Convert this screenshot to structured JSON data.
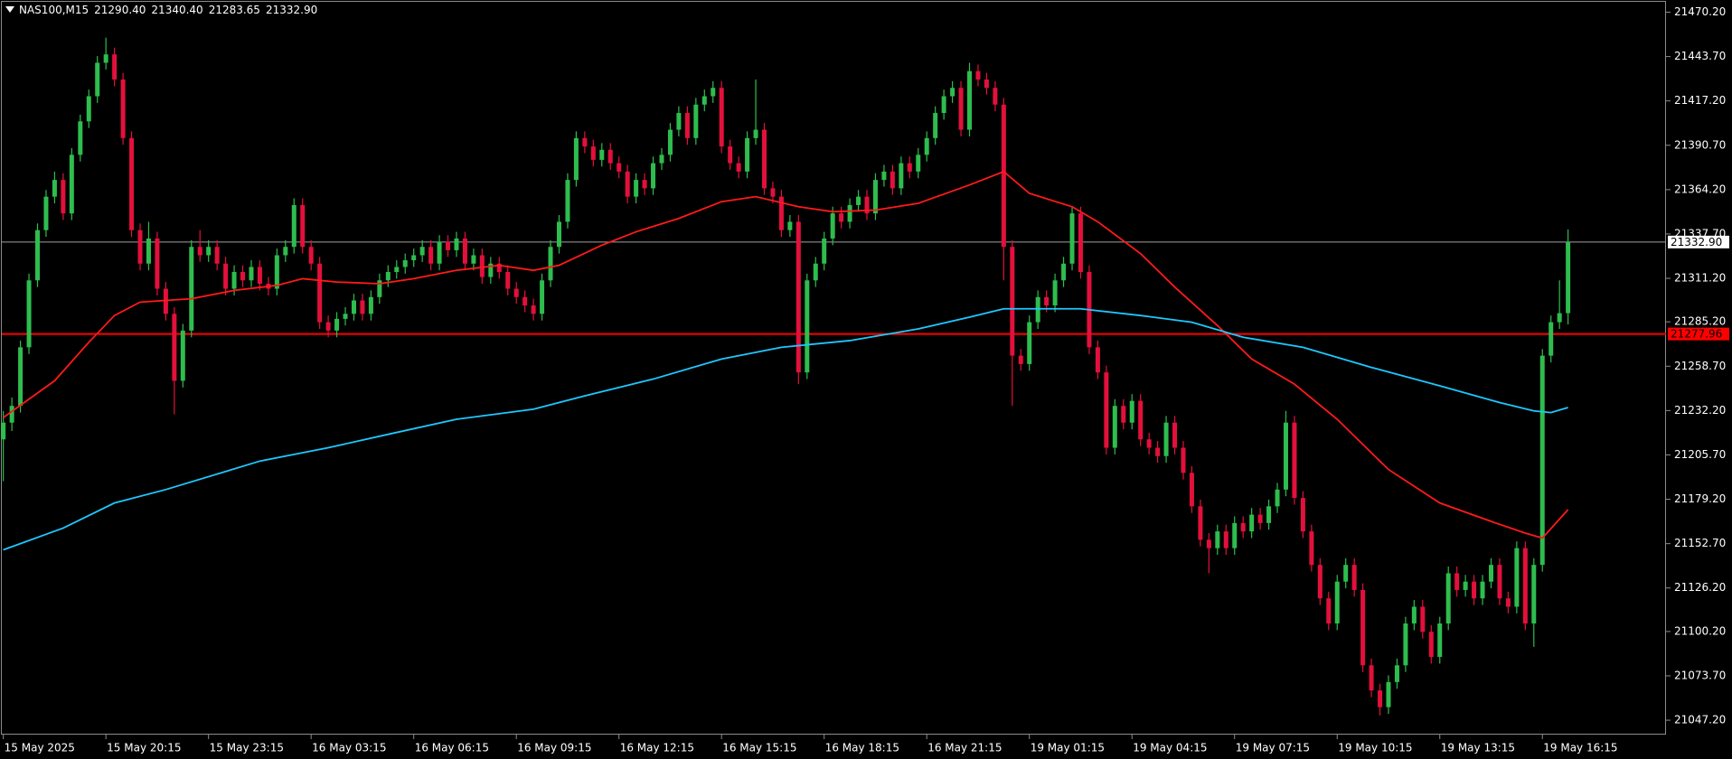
{
  "chart_data": {
    "type": "candlestick",
    "symbol": "NAS100,M15",
    "last_bar_labels": [
      "21290.40",
      "21340.40",
      "21283.65",
      "21332.90"
    ],
    "up_color": "#2ebd4e",
    "down_color": "#e3103c",
    "ylim": [
      21038.6,
      21477.5
    ],
    "xlim": [
      0,
      189
    ],
    "yticks": [
      {
        "value": 21470.2,
        "label": "21470.20"
      },
      {
        "value": 21443.7,
        "label": "21443.70"
      },
      {
        "value": 21417.2,
        "label": "21417.20"
      },
      {
        "value": 21390.7,
        "label": "21390.70"
      },
      {
        "value": 21364.2,
        "label": "21364.20"
      },
      {
        "value": 21337.7,
        "label": "21337.70"
      },
      {
        "value": 21311.2,
        "label": "21311.20"
      },
      {
        "value": 21285.2,
        "label": "21285.20"
      },
      {
        "value": 21258.7,
        "label": "21258.70"
      },
      {
        "value": 21232.2,
        "label": "21232.20"
      },
      {
        "value": 21205.7,
        "label": "21205.70"
      },
      {
        "value": 21179.2,
        "label": "21179.20"
      },
      {
        "value": 21152.7,
        "label": "21152.70"
      },
      {
        "value": 21126.2,
        "label": "21126.20"
      },
      {
        "value": 21100.2,
        "label": "21100.20"
      },
      {
        "value": 21073.7,
        "label": "21073.70"
      },
      {
        "value": 21047.2,
        "label": "21047.20"
      }
    ],
    "xticks": [
      {
        "value": 0,
        "label": "15 May 2025"
      },
      {
        "value": 12,
        "label": "15 May 20:15"
      },
      {
        "value": 24,
        "label": "15 May 23:15"
      },
      {
        "value": 36,
        "label": "16 May 03:15"
      },
      {
        "value": 48,
        "label": "16 May 06:15"
      },
      {
        "value": 60,
        "label": "16 May 09:15"
      },
      {
        "value": 72,
        "label": "16 May 12:15"
      },
      {
        "value": 84,
        "label": "16 May 15:15"
      },
      {
        "value": 96,
        "label": "16 May 18:15"
      },
      {
        "value": 108,
        "label": "16 May 21:15"
      },
      {
        "value": 120,
        "label": "19 May 01:15"
      },
      {
        "value": 132,
        "label": "19 May 04:15"
      },
      {
        "value": 144,
        "label": "19 May 07:15"
      },
      {
        "value": 156,
        "label": "19 May 10:15"
      },
      {
        "value": 168,
        "label": "19 May 13:15"
      },
      {
        "value": 180,
        "label": "19 May 16:15"
      }
    ],
    "bid_line": {
      "value": 21332.9,
      "label": "21332.90",
      "color": "#a0a0a0"
    },
    "level_line": {
      "value": 21277.96,
      "label": "21277.96",
      "color": "#ff0000"
    },
    "series": [
      {
        "color": "#ff1a1a",
        "x": [
          0,
          6,
          10,
          13,
          16,
          19,
          22,
          27,
          32,
          35,
          39,
          44,
          48,
          53,
          58,
          62,
          65,
          70,
          74,
          79,
          84,
          88,
          93,
          97,
          102,
          107,
          113,
          117,
          120,
          125,
          128,
          133,
          137,
          142,
          146,
          151,
          156,
          162,
          168,
          174,
          178,
          180,
          183
        ],
        "values": [
          21228,
          21250,
          21273,
          21289,
          21297,
          21298,
          21299,
          21304,
          21307,
          21311,
          21309,
          21308,
          21311,
          21316,
          21319,
          21316,
          21319,
          21331,
          21339,
          21347,
          21357,
          21360,
          21354,
          21351,
          21352,
          21356,
          21367,
          21375,
          21362,
          21354,
          21345,
          21326,
          21306,
          21283,
          21263,
          21248,
          21227,
          21197,
          21177,
          21166,
          21159,
          21156,
          21173
        ]
      },
      {
        "color": "#1ec8ff",
        "x": [
          0,
          7,
          13,
          19,
          30,
          38,
          45,
          53,
          62,
          68,
          76,
          84,
          91,
          99,
          107,
          113,
          117,
          122,
          126,
          133,
          139,
          145,
          152,
          160,
          168,
          175,
          179,
          181,
          183
        ],
        "values": [
          21149,
          21162,
          21177,
          21185,
          21202,
          21210,
          21218,
          21227,
          21233,
          21241,
          21251,
          21263,
          21270,
          21274,
          21281,
          21288,
          21293,
          21293,
          21293,
          21289,
          21285,
          21276,
          21270,
          21258,
          21247,
          21237,
          21232,
          21231,
          21234
        ]
      }
    ],
    "ohlc": [
      [
        21215,
        21232,
        21190,
        21225
      ],
      [
        21225,
        21240,
        21220,
        21235
      ],
      [
        21235,
        21274,
        21231,
        21270
      ],
      [
        21270,
        21314,
        21266,
        21310
      ],
      [
        21310,
        21344,
        21306,
        21340
      ],
      [
        21340,
        21364,
        21336,
        21360
      ],
      [
        21360,
        21375,
        21356,
        21370
      ],
      [
        21370,
        21374,
        21346,
        21350
      ],
      [
        21350,
        21389,
        21346,
        21385
      ],
      [
        21385,
        21409,
        21381,
        21405
      ],
      [
        21405,
        21424,
        21401,
        21420
      ],
      [
        21420,
        21444,
        21416,
        21440
      ],
      [
        21440,
        21455,
        21436,
        21445
      ],
      [
        21445,
        21449,
        21426,
        21430
      ],
      [
        21430,
        21434,
        21391,
        21395
      ],
      [
        21395,
        21399,
        21336,
        21340
      ],
      [
        21340,
        21344,
        21316,
        21320
      ],
      [
        21320,
        21345,
        21316,
        21335
      ],
      [
        21335,
        21339,
        21301,
        21305
      ],
      [
        21305,
        21309,
        21286,
        21290
      ],
      [
        21290,
        21294,
        21230,
        21250
      ],
      [
        21250,
        21284,
        21246,
        21280
      ],
      [
        21280,
        21334,
        21276,
        21330
      ],
      [
        21330,
        21340,
        21321,
        21325
      ],
      [
        21325,
        21334,
        21321,
        21330
      ],
      [
        21330,
        21334,
        21316,
        21320
      ],
      [
        21320,
        21324,
        21301,
        21305
      ],
      [
        21305,
        21319,
        21301,
        21315
      ],
      [
        21315,
        21319,
        21306,
        21310
      ],
      [
        21310,
        21322,
        21306,
        21318
      ],
      [
        21318,
        21322,
        21304,
        21308
      ],
      [
        21308,
        21312,
        21301,
        21305
      ],
      [
        21305,
        21329,
        21301,
        21325
      ],
      [
        21325,
        21334,
        21321,
        21330
      ],
      [
        21330,
        21359,
        21326,
        21355
      ],
      [
        21355,
        21359,
        21326,
        21330
      ],
      [
        21330,
        21334,
        21316,
        21320
      ],
      [
        21320,
        21324,
        21281,
        21285
      ],
      [
        21285,
        21289,
        21276,
        21280
      ],
      [
        21280,
        21291,
        21276,
        21287
      ],
      [
        21287,
        21294,
        21283,
        21290
      ],
      [
        21290,
        21302,
        21286,
        21298
      ],
      [
        21298,
        21302,
        21286,
        21290
      ],
      [
        21290,
        21304,
        21286,
        21300
      ],
      [
        21300,
        21314,
        21296,
        21310
      ],
      [
        21310,
        21319,
        21306,
        21315
      ],
      [
        21315,
        21322,
        21311,
        21318
      ],
      [
        21318,
        21326,
        21314,
        21322
      ],
      [
        21322,
        21329,
        21318,
        21325
      ],
      [
        21325,
        21334,
        21321,
        21330
      ],
      [
        21330,
        21334,
        21316,
        21320
      ],
      [
        21320,
        21337,
        21316,
        21333
      ],
      [
        21333,
        21337,
        21324,
        21328
      ],
      [
        21328,
        21339,
        21324,
        21335
      ],
      [
        21335,
        21339,
        21316,
        21320
      ],
      [
        21320,
        21329,
        21316,
        21325
      ],
      [
        21325,
        21329,
        21308,
        21312
      ],
      [
        21312,
        21324,
        21308,
        21320
      ],
      [
        21320,
        21324,
        21311,
        21315
      ],
      [
        21315,
        21319,
        21301,
        21305
      ],
      [
        21305,
        21309,
        21296,
        21300
      ],
      [
        21300,
        21304,
        21291,
        21295
      ],
      [
        21295,
        21299,
        21286,
        21290
      ],
      [
        21290,
        21314,
        21286,
        21310
      ],
      [
        21310,
        21334,
        21306,
        21330
      ],
      [
        21330,
        21349,
        21326,
        21345
      ],
      [
        21345,
        21374,
        21341,
        21370
      ],
      [
        21370,
        21399,
        21366,
        21395
      ],
      [
        21395,
        21399,
        21386,
        21390
      ],
      [
        21390,
        21394,
        21378,
        21382
      ],
      [
        21382,
        21392,
        21378,
        21388
      ],
      [
        21388,
        21392,
        21376,
        21380
      ],
      [
        21380,
        21384,
        21371,
        21375
      ],
      [
        21375,
        21379,
        21356,
        21360
      ],
      [
        21360,
        21374,
        21356,
        21370
      ],
      [
        21370,
        21374,
        21361,
        21365
      ],
      [
        21365,
        21384,
        21361,
        21380
      ],
      [
        21380,
        21389,
        21376,
        21385
      ],
      [
        21385,
        21404,
        21381,
        21400
      ],
      [
        21400,
        21414,
        21396,
        21410
      ],
      [
        21410,
        21414,
        21391,
        21395
      ],
      [
        21395,
        21419,
        21391,
        21415
      ],
      [
        21415,
        21424,
        21411,
        21420
      ],
      [
        21420,
        21429,
        21416,
        21425
      ],
      [
        21425,
        21429,
        21386,
        21390
      ],
      [
        21390,
        21394,
        21376,
        21380
      ],
      [
        21380,
        21384,
        21371,
        21375
      ],
      [
        21375,
        21399,
        21371,
        21395
      ],
      [
        21395,
        21430,
        21391,
        21400
      ],
      [
        21400,
        21404,
        21361,
        21365
      ],
      [
        21365,
        21369,
        21356,
        21360
      ],
      [
        21360,
        21364,
        21336,
        21340
      ],
      [
        21340,
        21349,
        21336,
        21345
      ],
      [
        21345,
        21349,
        21248,
        21255
      ],
      [
        21255,
        21314,
        21251,
        21310
      ],
      [
        21310,
        21324,
        21306,
        21320
      ],
      [
        21320,
        21339,
        21316,
        21335
      ],
      [
        21335,
        21354,
        21331,
        21350
      ],
      [
        21350,
        21354,
        21341,
        21345
      ],
      [
        21345,
        21359,
        21341,
        21355
      ],
      [
        21355,
        21364,
        21351,
        21360
      ],
      [
        21360,
        21364,
        21346,
        21350
      ],
      [
        21350,
        21374,
        21346,
        21370
      ],
      [
        21370,
        21379,
        21366,
        21375
      ],
      [
        21375,
        21379,
        21361,
        21365
      ],
      [
        21365,
        21384,
        21361,
        21380
      ],
      [
        21380,
        21384,
        21371,
        21375
      ],
      [
        21375,
        21389,
        21371,
        21385
      ],
      [
        21385,
        21399,
        21381,
        21395
      ],
      [
        21395,
        21414,
        21391,
        21410
      ],
      [
        21410,
        21424,
        21406,
        21420
      ],
      [
        21420,
        21429,
        21416,
        21425
      ],
      [
        21425,
        21429,
        21396,
        21400
      ],
      [
        21400,
        21440,
        21396,
        21435
      ],
      [
        21435,
        21439,
        21426,
        21430
      ],
      [
        21430,
        21434,
        21421,
        21425
      ],
      [
        21425,
        21429,
        21411,
        21415
      ],
      [
        21415,
        21419,
        21310,
        21330
      ],
      [
        21330,
        21334,
        21235,
        21265
      ],
      [
        21265,
        21269,
        21256,
        21260
      ],
      [
        21260,
        21289,
        21256,
        21285
      ],
      [
        21285,
        21304,
        21281,
        21300
      ],
      [
        21300,
        21304,
        21291,
        21295
      ],
      [
        21295,
        21314,
        21291,
        21310
      ],
      [
        21310,
        21324,
        21306,
        21320
      ],
      [
        21320,
        21354,
        21316,
        21350
      ],
      [
        21350,
        21354,
        21311,
        21315
      ],
      [
        21315,
        21319,
        21266,
        21270
      ],
      [
        21270,
        21274,
        21251,
        21255
      ],
      [
        21255,
        21259,
        21206,
        21210
      ],
      [
        21210,
        21239,
        21206,
        21235
      ],
      [
        21235,
        21239,
        21221,
        21225
      ],
      [
        21225,
        21242,
        21221,
        21238
      ],
      [
        21238,
        21242,
        21211,
        21215
      ],
      [
        21215,
        21219,
        21206,
        21210
      ],
      [
        21210,
        21214,
        21201,
        21205
      ],
      [
        21205,
        21229,
        21201,
        21225
      ],
      [
        21225,
        21229,
        21206,
        21210
      ],
      [
        21210,
        21214,
        21191,
        21195
      ],
      [
        21195,
        21199,
        21171,
        21175
      ],
      [
        21175,
        21179,
        21151,
        21155
      ],
      [
        21155,
        21159,
        21135,
        21150
      ],
      [
        21150,
        21164,
        21146,
        21160
      ],
      [
        21160,
        21164,
        21146,
        21150
      ],
      [
        21150,
        21169,
        21146,
        21165
      ],
      [
        21165,
        21169,
        21156,
        21160
      ],
      [
        21160,
        21174,
        21156,
        21170
      ],
      [
        21170,
        21174,
        21161,
        21165
      ],
      [
        21165,
        21179,
        21161,
        21175
      ],
      [
        21175,
        21189,
        21171,
        21185
      ],
      [
        21185,
        21232,
        21181,
        21225
      ],
      [
        21225,
        21229,
        21176,
        21180
      ],
      [
        21180,
        21184,
        21156,
        21160
      ],
      [
        21160,
        21164,
        21136,
        21140
      ],
      [
        21140,
        21144,
        21116,
        21120
      ],
      [
        21120,
        21124,
        21101,
        21105
      ],
      [
        21105,
        21134,
        21101,
        21130
      ],
      [
        21130,
        21144,
        21126,
        21140
      ],
      [
        21140,
        21144,
        21121,
        21125
      ],
      [
        21125,
        21129,
        21076,
        21080
      ],
      [
        21080,
        21084,
        21061,
        21065
      ],
      [
        21065,
        21069,
        21050,
        21055
      ],
      [
        21055,
        21074,
        21051,
        21070
      ],
      [
        21070,
        21084,
        21066,
        21080
      ],
      [
        21080,
        21109,
        21076,
        21105
      ],
      [
        21105,
        21119,
        21101,
        21115
      ],
      [
        21115,
        21119,
        21096,
        21100
      ],
      [
        21100,
        21104,
        21081,
        21085
      ],
      [
        21085,
        21109,
        21081,
        21105
      ],
      [
        21105,
        21139,
        21101,
        21135
      ],
      [
        21135,
        21139,
        21121,
        21125
      ],
      [
        21125,
        21134,
        21121,
        21130
      ],
      [
        21130,
        21134,
        21116,
        21120
      ],
      [
        21120,
        21134,
        21116,
        21130
      ],
      [
        21130,
        21144,
        21126,
        21140
      ],
      [
        21140,
        21144,
        21116,
        21120
      ],
      [
        21120,
        21124,
        21111,
        21115
      ],
      [
        21115,
        21154,
        21111,
        21150
      ],
      [
        21150,
        21154,
        21101,
        21105
      ],
      [
        21105,
        21144,
        21091,
        21140
      ],
      [
        21140,
        21269,
        21136,
        21265
      ],
      [
        21265,
        21289,
        21261,
        21285
      ],
      [
        21285,
        21310,
        21281,
        21290.4
      ],
      [
        21290.4,
        21340.4,
        21283.65,
        21332.9
      ]
    ]
  }
}
